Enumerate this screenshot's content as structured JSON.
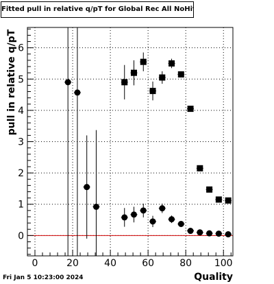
{
  "chart_data": {
    "type": "scatter",
    "title": "Fitted pull in relative q/pT for Global Rec All NoHits",
    "xlabel": "Quality",
    "ylabel": "pull in relative q/pT",
    "xlim": [
      -4,
      105
    ],
    "ylim": [
      -0.65,
      6.65
    ],
    "x_ticks": [
      0,
      20,
      40,
      60,
      80,
      100
    ],
    "y_ticks": [
      0,
      1,
      2,
      3,
      4,
      5,
      6
    ],
    "grid": true,
    "reference_line": {
      "y": 0,
      "color": "#d00000"
    },
    "series": [
      {
        "marker": "square",
        "points": [
          {
            "x": 47.5,
            "y": 4.9,
            "err": 0.55
          },
          {
            "x": 52.5,
            "y": 5.2,
            "err": 0.4
          },
          {
            "x": 57.5,
            "y": 5.55,
            "err": 0.3
          },
          {
            "x": 62.5,
            "y": 4.62,
            "err": 0.3
          },
          {
            "x": 67.5,
            "y": 5.05,
            "err": 0.2
          },
          {
            "x": 72.5,
            "y": 5.5,
            "err": 0.15
          },
          {
            "x": 77.5,
            "y": 5.15,
            "err": 0.08
          },
          {
            "x": 82.5,
            "y": 4.05,
            "err": 0.05
          },
          {
            "x": 87.5,
            "y": 2.15,
            "err": 0.03
          },
          {
            "x": 92.5,
            "y": 1.47,
            "err": 0.02
          },
          {
            "x": 97.5,
            "y": 1.15,
            "err": 0.02
          },
          {
            "x": 102.5,
            "y": 1.12,
            "err": 0.02
          }
        ]
      },
      {
        "marker": "circle",
        "points": [
          {
            "x": 17.5,
            "y": 4.9,
            "err": 8.0
          },
          {
            "x": 22.5,
            "y": 4.57,
            "err": 8.0
          },
          {
            "x": 27.5,
            "y": 1.55,
            "err": 1.65
          },
          {
            "x": 32.5,
            "y": 0.92,
            "err": 2.45
          },
          {
            "x": 47.5,
            "y": 0.58,
            "err": 0.3
          },
          {
            "x": 52.5,
            "y": 0.67,
            "err": 0.25
          },
          {
            "x": 57.5,
            "y": 0.8,
            "err": 0.22
          },
          {
            "x": 62.5,
            "y": 0.45,
            "err": 0.18
          },
          {
            "x": 67.5,
            "y": 0.87,
            "err": 0.15
          },
          {
            "x": 72.5,
            "y": 0.52,
            "err": 0.12
          },
          {
            "x": 77.5,
            "y": 0.37,
            "err": 0.08
          },
          {
            "x": 82.5,
            "y": 0.15,
            "err": 0.04
          },
          {
            "x": 87.5,
            "y": 0.1,
            "err": 0.03
          },
          {
            "x": 92.5,
            "y": 0.07,
            "err": 0.02
          },
          {
            "x": 97.5,
            "y": 0.06,
            "err": 0.02
          },
          {
            "x": 102.5,
            "y": 0.04,
            "err": 0.02
          }
        ]
      }
    ]
  },
  "footer": "Fri Jan  5 10:23:00 2024"
}
